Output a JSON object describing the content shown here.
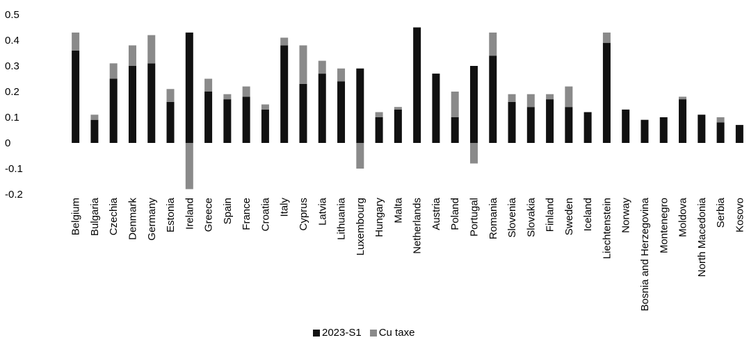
{
  "chart_data": {
    "type": "bar",
    "stacked": true,
    "title": "",
    "xlabel": "",
    "ylabel": "",
    "ylim": [
      -0.2,
      0.5
    ],
    "yticks": [
      "0.5",
      "0.4",
      "0.3",
      "0.2",
      "0.1",
      "0",
      "-0.1",
      "-0.2"
    ],
    "grid": false,
    "legend_position": "bottom",
    "categories": [
      "Belgium",
      "Bulgaria",
      "Czechia",
      "Denmark",
      "Germany",
      "Estonia",
      "Ireland",
      "Greece",
      "Spain",
      "France",
      "Croatia",
      "Italy",
      "Cyprus",
      "Latvia",
      "Lithuania",
      "Luxembourg",
      "Hungary",
      "Malta",
      "Netherlands",
      "Austria",
      "Poland",
      "Portugal",
      "Romania",
      "Slovenia",
      "Slovakia",
      "Finland",
      "Sweden",
      "Iceland",
      "Liechtenstein",
      "Norway",
      "Bosnia and Herzegovina",
      "Montenegro",
      "Moldova",
      "North Macedonia",
      "Serbia",
      "Kosovo"
    ],
    "series": [
      {
        "name": "2023-S1",
        "color": "#111111",
        "values": [
          0.36,
          0.09,
          0.25,
          0.3,
          0.31,
          0.16,
          0.43,
          0.2,
          0.17,
          0.18,
          0.13,
          0.38,
          0.23,
          0.27,
          0.24,
          0.29,
          0.1,
          0.13,
          0.45,
          0.27,
          0.1,
          0.3,
          0.34,
          0.16,
          0.14,
          0.17,
          0.14,
          0.12,
          0.39,
          0.13,
          0.09,
          0.1,
          0.17,
          0.11,
          0.08,
          0.07
        ]
      },
      {
        "name": "Cu taxe",
        "color": "#8a8a8a",
        "values": [
          0.07,
          0.02,
          0.06,
          0.08,
          0.11,
          0.05,
          -0.18,
          0.05,
          0.02,
          0.04,
          0.02,
          0.03,
          0.15,
          0.05,
          0.05,
          -0.1,
          0.02,
          0.01,
          0.0,
          0.0,
          0.1,
          -0.08,
          0.09,
          0.03,
          0.05,
          0.02,
          0.08,
          0.0,
          0.04,
          0.0,
          0.0,
          0.0,
          0.01,
          0.0,
          0.02,
          0.0
        ]
      }
    ]
  }
}
